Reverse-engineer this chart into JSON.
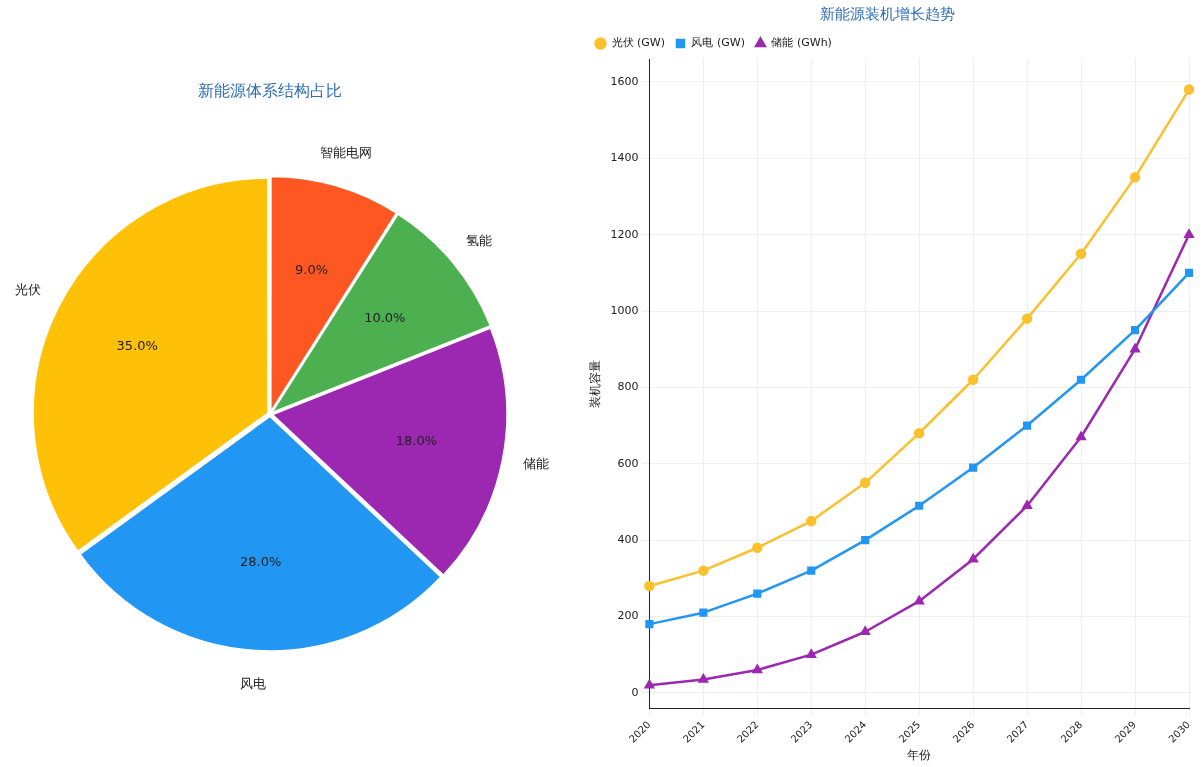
{
  "chart_data": [
    {
      "type": "pie",
      "title": "新能源体系结构占比",
      "categories": [
        "智能电网",
        "氢能",
        "储能",
        "风电",
        "光伏"
      ],
      "values": [
        9,
        10,
        18,
        28,
        35
      ],
      "colors": [
        "#ff5722",
        "#4caf50",
        "#9c27b0",
        "#2196f3",
        "#ffc107"
      ],
      "value_labels": [
        "9.0%",
        "10.0%",
        "18.0%",
        "28.0%",
        "35.0%"
      ]
    },
    {
      "type": "line",
      "title": "新能源装机增长趋势",
      "xlabel": "年份",
      "ylabel": "装机容量",
      "categories": [
        "2020",
        "2021",
        "2022",
        "2023",
        "2024",
        "2025",
        "2026",
        "2027",
        "2028",
        "2029",
        "2030"
      ],
      "series": [
        {
          "name": "光伏 (GW)",
          "color": "#fbc02d",
          "marker": "circle",
          "values": [
            280,
            320,
            380,
            450,
            550,
            680,
            820,
            980,
            1150,
            1350,
            1580
          ]
        },
        {
          "name": "风电 (GW)",
          "color": "#2196f3",
          "marker": "square",
          "values": [
            180,
            210,
            260,
            320,
            400,
            490,
            590,
            700,
            820,
            950,
            1100
          ]
        },
        {
          "name": "储能 (GWh)",
          "color": "#9c27b0",
          "marker": "triangle",
          "values": [
            20,
            35,
            60,
            100,
            160,
            240,
            350,
            490,
            670,
            900,
            1200
          ]
        }
      ],
      "ylim": [
        -40,
        1660
      ],
      "yticks": [
        0,
        200,
        400,
        600,
        800,
        1000,
        1200,
        1400,
        1600
      ],
      "grid": true,
      "legend": "top left",
      "line_style": "solid"
    }
  ]
}
